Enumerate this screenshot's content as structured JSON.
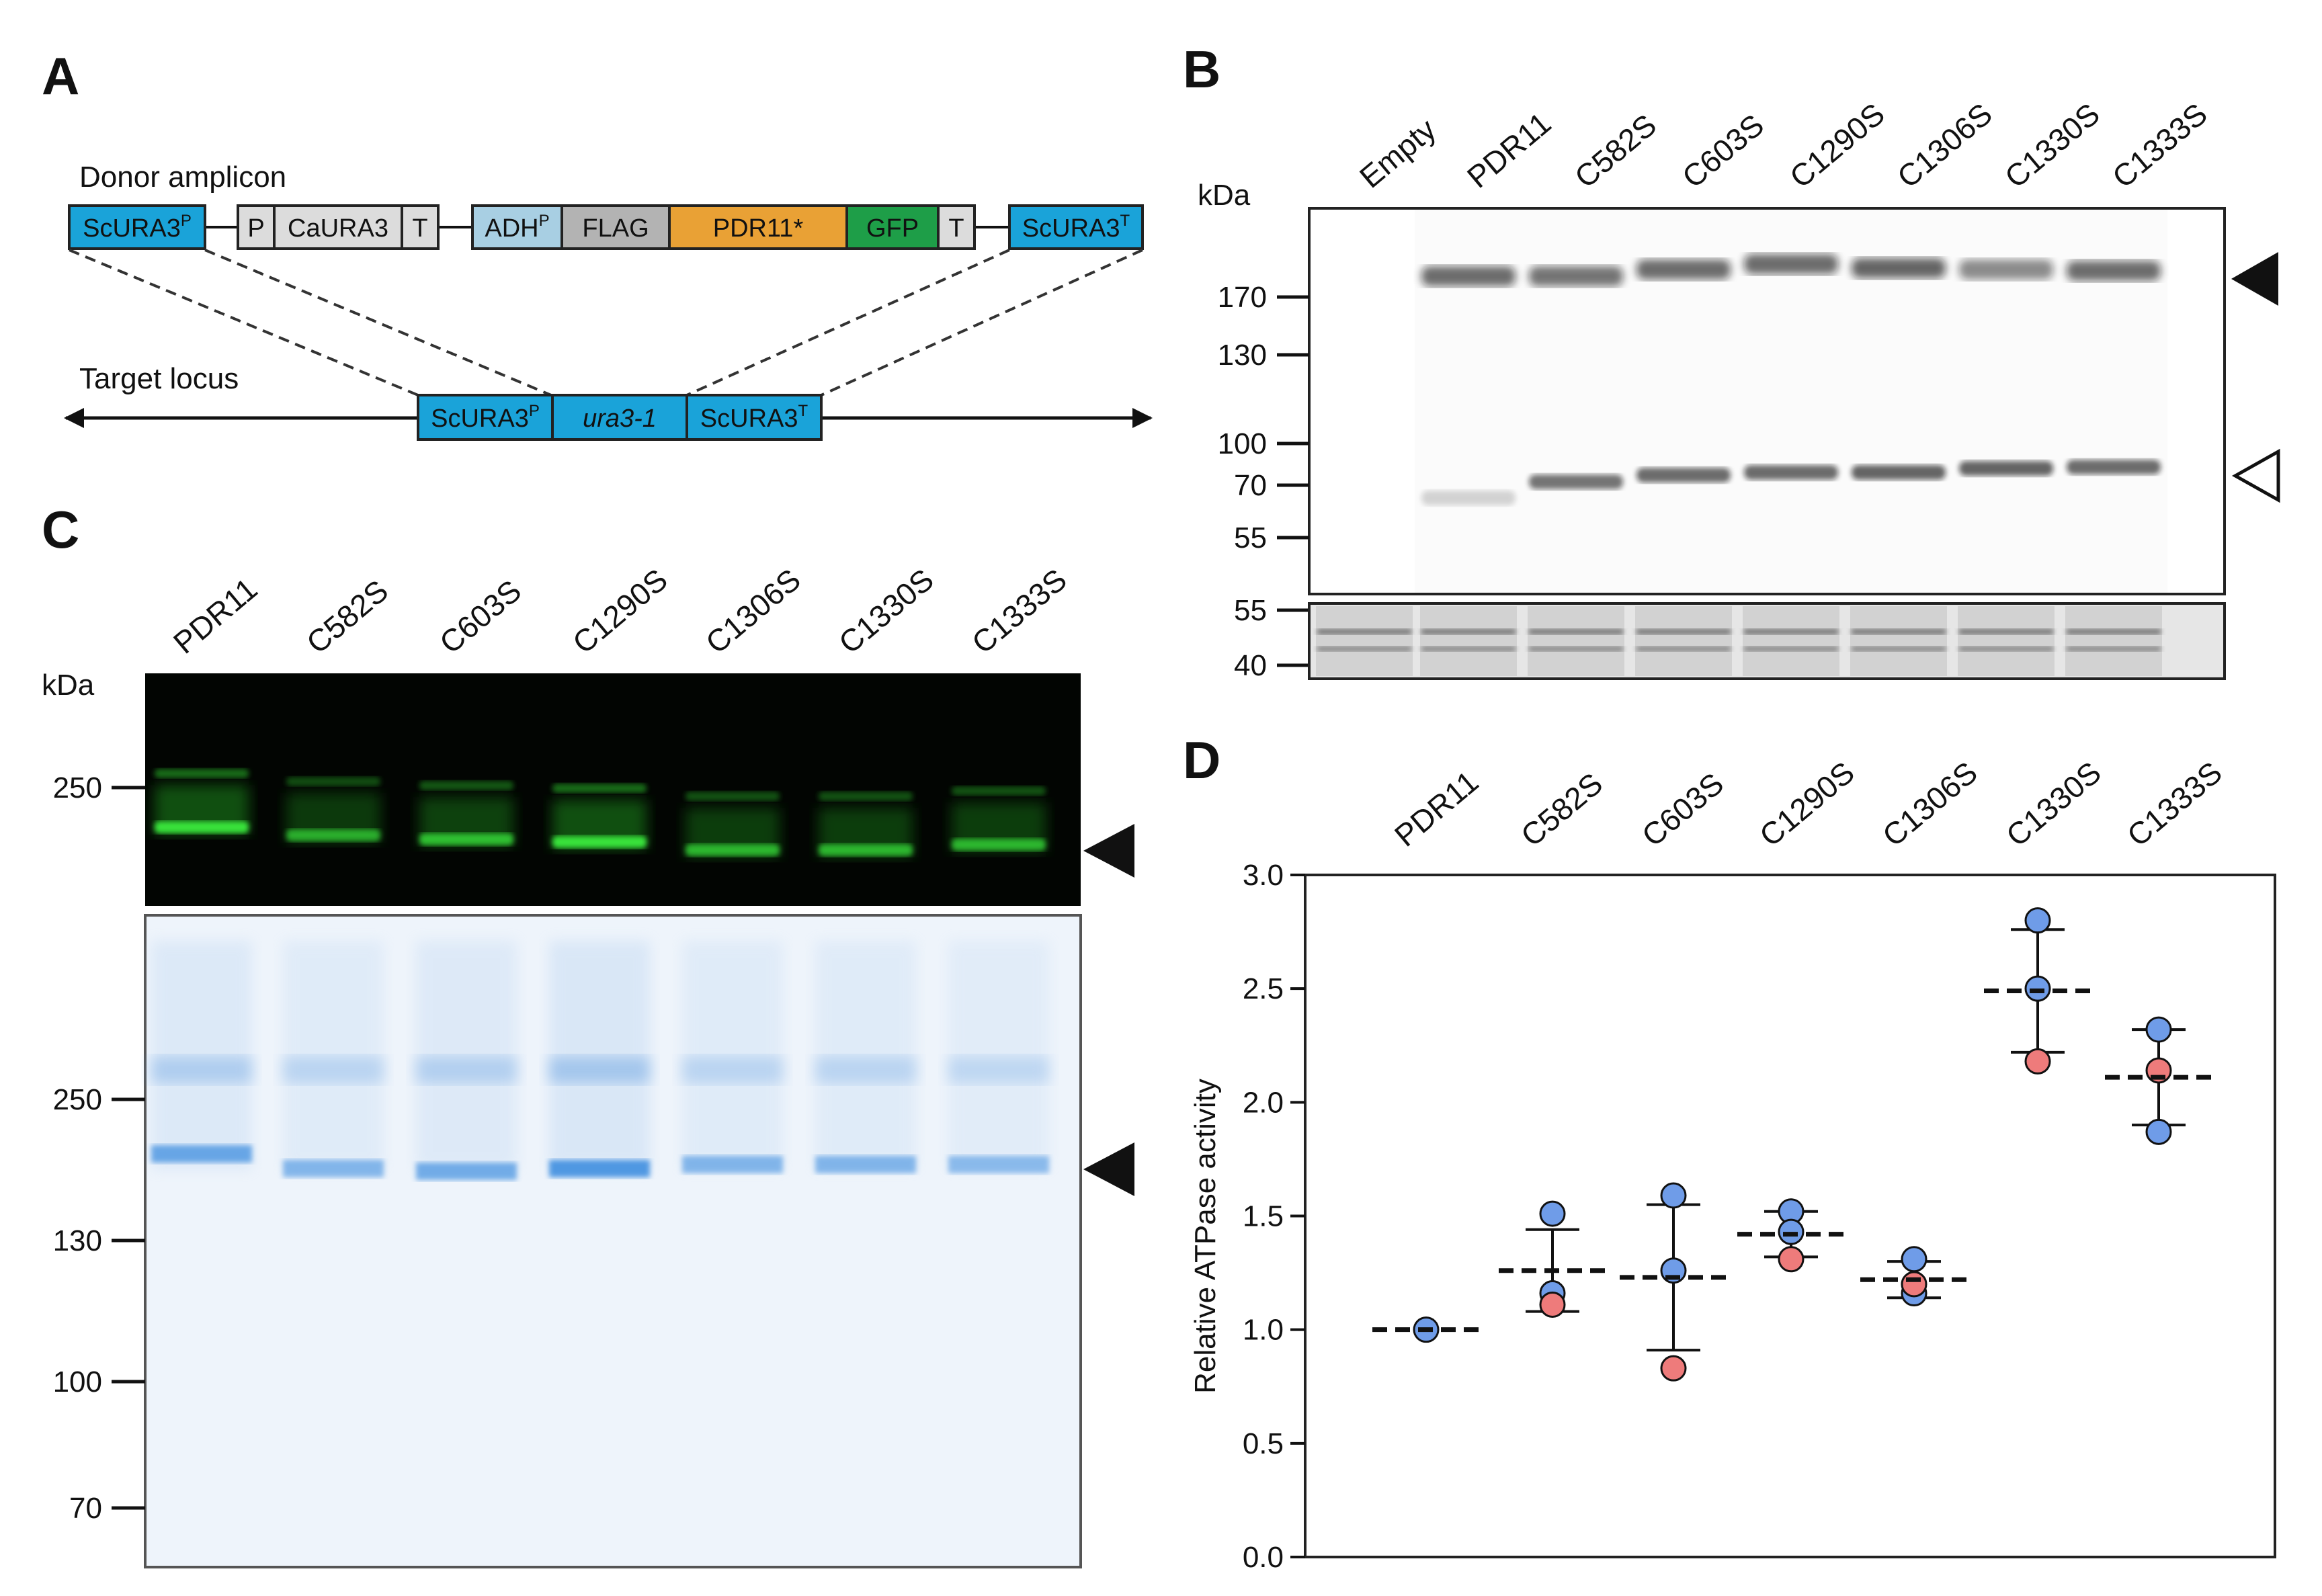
{
  "panels": {
    "A": {
      "letter": "A",
      "donor_label": "Donor amplicon",
      "target_label": "Target locus",
      "donor_parts": [
        {
          "label": "ScURA3",
          "sup": "P",
          "color": "#1aa3d9"
        },
        {
          "label": "P",
          "sup": "",
          "color": "#dcdcdc"
        },
        {
          "label": "CaURA3",
          "sup": "",
          "color": "#dcdcdc"
        },
        {
          "label": "T",
          "sup": "",
          "color": "#dcdcdc"
        },
        {
          "label": "ADH",
          "sup": "P",
          "color": "#a8cfe3"
        },
        {
          "label": "FLAG",
          "sup": "",
          "color": "#b3b3b3"
        },
        {
          "label": "PDR11*",
          "sup": "",
          "color": "#e9a135"
        },
        {
          "label": "GFP",
          "sup": "",
          "color": "#1e9e48"
        },
        {
          "label": "T",
          "sup": "",
          "color": "#dcdcdc"
        },
        {
          "label": "ScURA3",
          "sup": "T",
          "color": "#1aa3d9"
        }
      ],
      "target_parts": [
        {
          "label": "ScURA3",
          "sup": "P",
          "italic": false
        },
        {
          "label": "ura3-1",
          "sup": "",
          "italic": true
        },
        {
          "label": "ScURA3",
          "sup": "T",
          "italic": false
        }
      ]
    },
    "B": {
      "letter": "B",
      "unit": "kDa",
      "lanes": [
        "Empty",
        "PDR11",
        "C582S",
        "C603S",
        "C1290S",
        "C1306S",
        "C1330S",
        "C1333S"
      ],
      "markers_main": [
        "170",
        "130",
        "100",
        "70",
        "55"
      ],
      "markers_loading": [
        "55",
        "40"
      ]
    },
    "C": {
      "letter": "C",
      "unit": "kDa",
      "lanes": [
        "PDR11",
        "C582S",
        "C603S",
        "C1290S",
        "C1306S",
        "C1330S",
        "C1333S"
      ],
      "markers_fluor": [
        "250"
      ],
      "markers_coomassie": [
        "250",
        "130",
        "100",
        "70"
      ]
    },
    "D": {
      "letter": "D"
    }
  },
  "chart_data": {
    "type": "scatter",
    "title": "",
    "xlabel": "",
    "ylabel": "Relative ATPase activity",
    "ylim": [
      0.0,
      3.0
    ],
    "yticks": [
      "0.0",
      "0.5",
      "1.0",
      "1.5",
      "2.0",
      "2.5",
      "3.0"
    ],
    "categories": [
      "PDR11",
      "C582S",
      "C603S",
      "C1290S",
      "C1306S",
      "C1330S",
      "C1333S"
    ],
    "colors": {
      "blue": "#6f9ce8",
      "red": "#ee7b7b"
    },
    "groups": [
      {
        "name": "PDR11",
        "points": [
          {
            "v": 1.0,
            "c": "blue"
          }
        ],
        "mean": 1.0,
        "sd": 0.0
      },
      {
        "name": "C582S",
        "points": [
          {
            "v": 1.51,
            "c": "blue"
          },
          {
            "v": 1.16,
            "c": "blue"
          },
          {
            "v": 1.11,
            "c": "red"
          }
        ],
        "mean": 1.26,
        "sd": 0.18
      },
      {
        "name": "C603S",
        "points": [
          {
            "v": 1.59,
            "c": "blue"
          },
          {
            "v": 1.26,
            "c": "blue"
          },
          {
            "v": 0.83,
            "c": "red"
          }
        ],
        "mean": 1.23,
        "sd": 0.32
      },
      {
        "name": "C1290S",
        "points": [
          {
            "v": 1.52,
            "c": "blue"
          },
          {
            "v": 1.43,
            "c": "blue"
          },
          {
            "v": 1.31,
            "c": "red"
          }
        ],
        "mean": 1.42,
        "sd": 0.1
      },
      {
        "name": "C1306S",
        "points": [
          {
            "v": 1.31,
            "c": "blue"
          },
          {
            "v": 1.16,
            "c": "blue"
          },
          {
            "v": 1.2,
            "c": "red"
          }
        ],
        "mean": 1.22,
        "sd": 0.08
      },
      {
        "name": "C1330S",
        "points": [
          {
            "v": 2.8,
            "c": "blue"
          },
          {
            "v": 2.5,
            "c": "blue"
          },
          {
            "v": 2.18,
            "c": "red"
          }
        ],
        "mean": 2.49,
        "sd": 0.27
      },
      {
        "name": "C1333S",
        "points": [
          {
            "v": 2.32,
            "c": "blue"
          },
          {
            "v": 1.87,
            "c": "blue"
          },
          {
            "v": 2.14,
            "c": "red"
          }
        ],
        "mean": 2.11,
        "sd": 0.21
      }
    ]
  }
}
